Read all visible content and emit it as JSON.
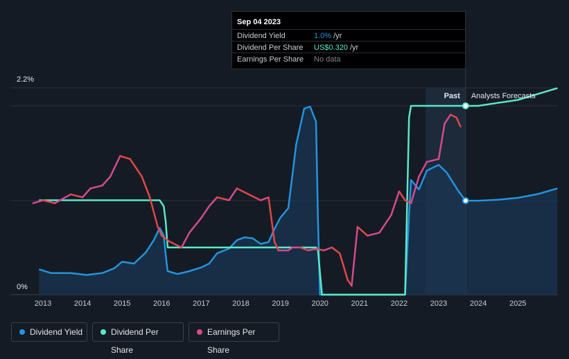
{
  "tooltip": {
    "date": "Sep 04 2023",
    "rows": [
      {
        "label": "Dividend Yield",
        "value": "1.0%",
        "unit": "/yr",
        "color": "#2394df"
      },
      {
        "label": "Dividend Per Share",
        "value": "US$0.320",
        "unit": "/yr",
        "color": "#5ae8c9"
      },
      {
        "label": "Earnings Per Share",
        "value": "No data",
        "unit": "",
        "color": "#7d8590"
      }
    ]
  },
  "regions": {
    "past_label": "Past",
    "forecast_label": "Analysts Forecasts"
  },
  "legend": [
    {
      "label": "Dividend Yield",
      "color": "#2394df"
    },
    {
      "label": "Dividend Per Share",
      "color": "#5ae8c9"
    },
    {
      "label": "Earnings Per Share",
      "color": "#d44b8f"
    }
  ],
  "chart_data": {
    "type": "line",
    "x_ticks": [
      "2013",
      "2014",
      "2015",
      "2016",
      "2017",
      "2018",
      "2019",
      "2020",
      "2021",
      "2022",
      "2023",
      "2024",
      "2025"
    ],
    "y_labels": {
      "top": "2.2%",
      "bottom": "0%"
    },
    "yield_ylim": [
      0,
      2.2
    ],
    "colors": {
      "yield": "#2394df",
      "dps": "#5ae8c9",
      "eps_up": "#d44b8f",
      "eps_down": "#e04848",
      "grid": "#2a313c"
    },
    "series": [
      {
        "name": "Dividend Yield",
        "unit": "%",
        "points": [
          [
            2012.9,
            0.27
          ],
          [
            2013.2,
            0.23
          ],
          [
            2013.7,
            0.23
          ],
          [
            2014.1,
            0.21
          ],
          [
            2014.5,
            0.23
          ],
          [
            2014.8,
            0.28
          ],
          [
            2015.0,
            0.35
          ],
          [
            2015.3,
            0.33
          ],
          [
            2015.6,
            0.45
          ],
          [
            2015.8,
            0.58
          ],
          [
            2015.95,
            0.71
          ],
          [
            2016.05,
            0.63
          ],
          [
            2016.12,
            0.35
          ],
          [
            2016.15,
            0.25
          ],
          [
            2016.4,
            0.22
          ],
          [
            2016.7,
            0.25
          ],
          [
            2017.0,
            0.29
          ],
          [
            2017.2,
            0.33
          ],
          [
            2017.4,
            0.44
          ],
          [
            2017.7,
            0.49
          ],
          [
            2017.9,
            0.58
          ],
          [
            2018.1,
            0.61
          ],
          [
            2018.3,
            0.6
          ],
          [
            2018.5,
            0.54
          ],
          [
            2018.7,
            0.56
          ],
          [
            2018.85,
            0.7
          ],
          [
            2019.0,
            0.82
          ],
          [
            2019.2,
            0.92
          ],
          [
            2019.4,
            1.6
          ],
          [
            2019.6,
            1.98
          ],
          [
            2019.75,
            2.0
          ],
          [
            2019.9,
            1.84
          ],
          [
            2019.95,
            0.8
          ],
          [
            2020.0,
            0.0
          ],
          [
            2022.15,
            0.0
          ],
          [
            2022.25,
            0.85
          ],
          [
            2022.3,
            1.22
          ],
          [
            2022.5,
            1.12
          ],
          [
            2022.7,
            1.32
          ],
          [
            2023.0,
            1.38
          ],
          [
            2023.2,
            1.3
          ],
          [
            2023.5,
            1.1
          ],
          [
            2023.68,
            1.0
          ],
          [
            2024.0,
            1.0
          ],
          [
            2024.5,
            1.01
          ],
          [
            2025.0,
            1.03
          ],
          [
            2025.5,
            1.07
          ],
          [
            2026.0,
            1.13
          ]
        ]
      },
      {
        "name": "Dividend Per Share",
        "points": [
          [
            2012.9,
            0.32
          ],
          [
            2015.95,
            0.32
          ],
          [
            2016.05,
            0.3
          ],
          [
            2016.1,
            0.25
          ],
          [
            2016.15,
            0.16
          ],
          [
            2019.9,
            0.16
          ],
          [
            2019.95,
            0.15
          ],
          [
            2020.05,
            0.0
          ],
          [
            2022.15,
            0.0
          ],
          [
            2022.25,
            0.6
          ],
          [
            2022.3,
            0.64
          ],
          [
            2023.68,
            0.64
          ],
          [
            2024.0,
            0.64
          ],
          [
            2024.5,
            0.65
          ],
          [
            2025.0,
            0.66
          ],
          [
            2025.5,
            0.68
          ],
          [
            2026.0,
            0.7
          ]
        ]
      },
      {
        "name": "Earnings Per Share",
        "points": [
          [
            2012.75,
            0.31
          ],
          [
            2013.0,
            0.32
          ],
          [
            2013.3,
            0.31
          ],
          [
            2013.7,
            0.34
          ],
          [
            2014.0,
            0.33
          ],
          [
            2014.2,
            0.36
          ],
          [
            2014.5,
            0.37
          ],
          [
            2014.7,
            0.4
          ],
          [
            2014.95,
            0.47
          ],
          [
            2015.2,
            0.46
          ],
          [
            2015.5,
            0.4
          ],
          [
            2015.7,
            0.33
          ],
          [
            2015.9,
            0.23
          ],
          [
            2016.0,
            0.2
          ],
          [
            2016.2,
            0.18
          ],
          [
            2016.5,
            0.16
          ],
          [
            2016.7,
            0.21
          ],
          [
            2017.0,
            0.26
          ],
          [
            2017.2,
            0.3
          ],
          [
            2017.4,
            0.33
          ],
          [
            2017.7,
            0.32
          ],
          [
            2017.9,
            0.36
          ],
          [
            2018.2,
            0.34
          ],
          [
            2018.5,
            0.32
          ],
          [
            2018.7,
            0.33
          ],
          [
            2018.85,
            0.18
          ],
          [
            2018.95,
            0.15
          ],
          [
            2019.2,
            0.15
          ],
          [
            2019.3,
            0.16
          ],
          [
            2019.5,
            0.16
          ],
          [
            2019.7,
            0.15
          ],
          [
            2019.9,
            0.155
          ],
          [
            2020.1,
            0.15
          ],
          [
            2020.3,
            0.16
          ],
          [
            2020.5,
            0.14
          ],
          [
            2020.7,
            0.05
          ],
          [
            2020.8,
            0.03
          ],
          [
            2020.95,
            0.23
          ],
          [
            2021.2,
            0.2
          ],
          [
            2021.5,
            0.21
          ],
          [
            2021.8,
            0.27
          ],
          [
            2022.0,
            0.35
          ],
          [
            2022.15,
            0.32
          ],
          [
            2022.3,
            0.31
          ],
          [
            2022.5,
            0.4
          ],
          [
            2022.7,
            0.45
          ],
          [
            2023.0,
            0.46
          ],
          [
            2023.15,
            0.58
          ],
          [
            2023.3,
            0.61
          ],
          [
            2023.45,
            0.6
          ],
          [
            2023.55,
            0.57
          ]
        ]
      }
    ],
    "past_forecast_split": 2023.68
  }
}
